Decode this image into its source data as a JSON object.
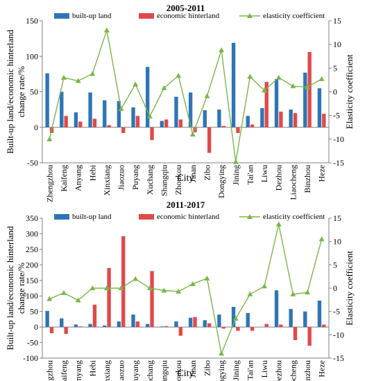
{
  "colors": {
    "built_up": "#2e75b6",
    "hinterland": "#e04a4a",
    "elasticity": "#7ab648",
    "axis": "#7f7f7f"
  },
  "chart_data": [
    {
      "type": "bar",
      "title": "2005-2011",
      "xlabel": "City",
      "ylabel_left_line1": "Built-up land/economic hinterland",
      "ylabel_left_line2": "change rate/%",
      "ylabel_right": "Elasticity coefficient",
      "ylim_left": [
        -50,
        150
      ],
      "yticks_left": [
        -50,
        0,
        50,
        100,
        150
      ],
      "ylim_right": [
        -15,
        15
      ],
      "yticks_right": [
        -15,
        -10,
        -5,
        0,
        5,
        10,
        15
      ],
      "categories": [
        "Zhengzhou",
        "Kaifeng",
        "Anyang",
        "Hebi",
        "Xinxiang",
        "Jiaozuo",
        "Puyang",
        "Xuchang",
        "Shangqiu",
        "Zhoukou",
        "Jinan",
        "Zibo",
        "Dongying",
        "Jining",
        "Tai'an",
        "Liwu",
        "Dezhou",
        "Liaocheng",
        "Binzhou",
        "Heze"
      ],
      "series": [
        {
          "name": "built-up land",
          "kind": "bar",
          "axis": "left",
          "values": [
            76,
            50,
            21,
            49,
            38,
            37,
            28,
            85,
            9,
            43,
            49,
            24,
            25,
            119,
            16,
            27,
            68,
            25,
            77,
            55
          ]
        },
        {
          "name": "economic hinterland",
          "kind": "bar",
          "axis": "left",
          "values": [
            -8,
            16,
            8,
            12,
            3,
            -8,
            16,
            -18,
            11,
            11,
            -7,
            -36,
            2,
            -8,
            4,
            64,
            22,
            20,
            106,
            19
          ]
        },
        {
          "name": "elasticity coefficient",
          "kind": "line",
          "axis": "right",
          "values": [
            -10,
            3,
            2.3,
            3.8,
            13,
            -3.6,
            1.6,
            -5.2,
            0.8,
            3.4,
            -9,
            -0.9,
            8.8,
            -14.8,
            3.2,
            0.3,
            3,
            1.2,
            1,
            2.7
          ]
        }
      ],
      "legend": "top"
    },
    {
      "type": "bar",
      "title": "2011-2017",
      "xlabel": "City",
      "ylabel_left_line1": "Built-up land/economic hinterland",
      "ylabel_left_line2": "change rate/%",
      "ylabel_right": "Elasticity  coefficient",
      "ylim_left": [
        -100,
        350
      ],
      "yticks_left": [
        -100,
        -50,
        0,
        50,
        100,
        150,
        200,
        250,
        300,
        350
      ],
      "ylim_right": [
        -15,
        15
      ],
      "yticks_right": [
        -15,
        -10,
        -5,
        0,
        5,
        10,
        15
      ],
      "categories": [
        "Zhengzhou",
        "Kaifeng",
        "Anyang",
        "Hebi",
        "Xinxiang",
        "Jiaozuo",
        "Puyang",
        "Xuchang",
        "Shangqiu",
        "Zhoukou",
        "Jinan",
        "Zibo",
        "Dongying",
        "Jining",
        "Tai'an",
        "Liwu",
        "Dezhou",
        "Liaocheng",
        "Binzhou",
        "Heze"
      ],
      "series": [
        {
          "name": "built-up land",
          "kind": "bar",
          "axis": "left",
          "values": [
            52,
            28,
            8,
            10,
            5,
            18,
            40,
            10,
            2,
            18,
            30,
            22,
            40,
            65,
            45,
            0,
            118,
            58,
            50,
            85
          ]
        },
        {
          "name": "economic hinterland",
          "kind": "bar",
          "axis": "left",
          "values": [
            -20,
            -22,
            2,
            72,
            190,
            292,
            18,
            180,
            3,
            -28,
            32,
            12,
            -5,
            -12,
            -12,
            10,
            8,
            -42,
            -60,
            8
          ]
        },
        {
          "name": "elasticity coefficient",
          "kind": "line",
          "axis": "right",
          "values": [
            -2.3,
            -1,
            -2.6,
            0,
            0,
            0,
            2,
            0,
            -0.5,
            -0.7,
            0.9,
            2.1,
            -14,
            -6.5,
            -1.3,
            0.4,
            13.7,
            -1.3,
            -0.9,
            10.5
          ]
        }
      ],
      "legend": "top"
    }
  ]
}
